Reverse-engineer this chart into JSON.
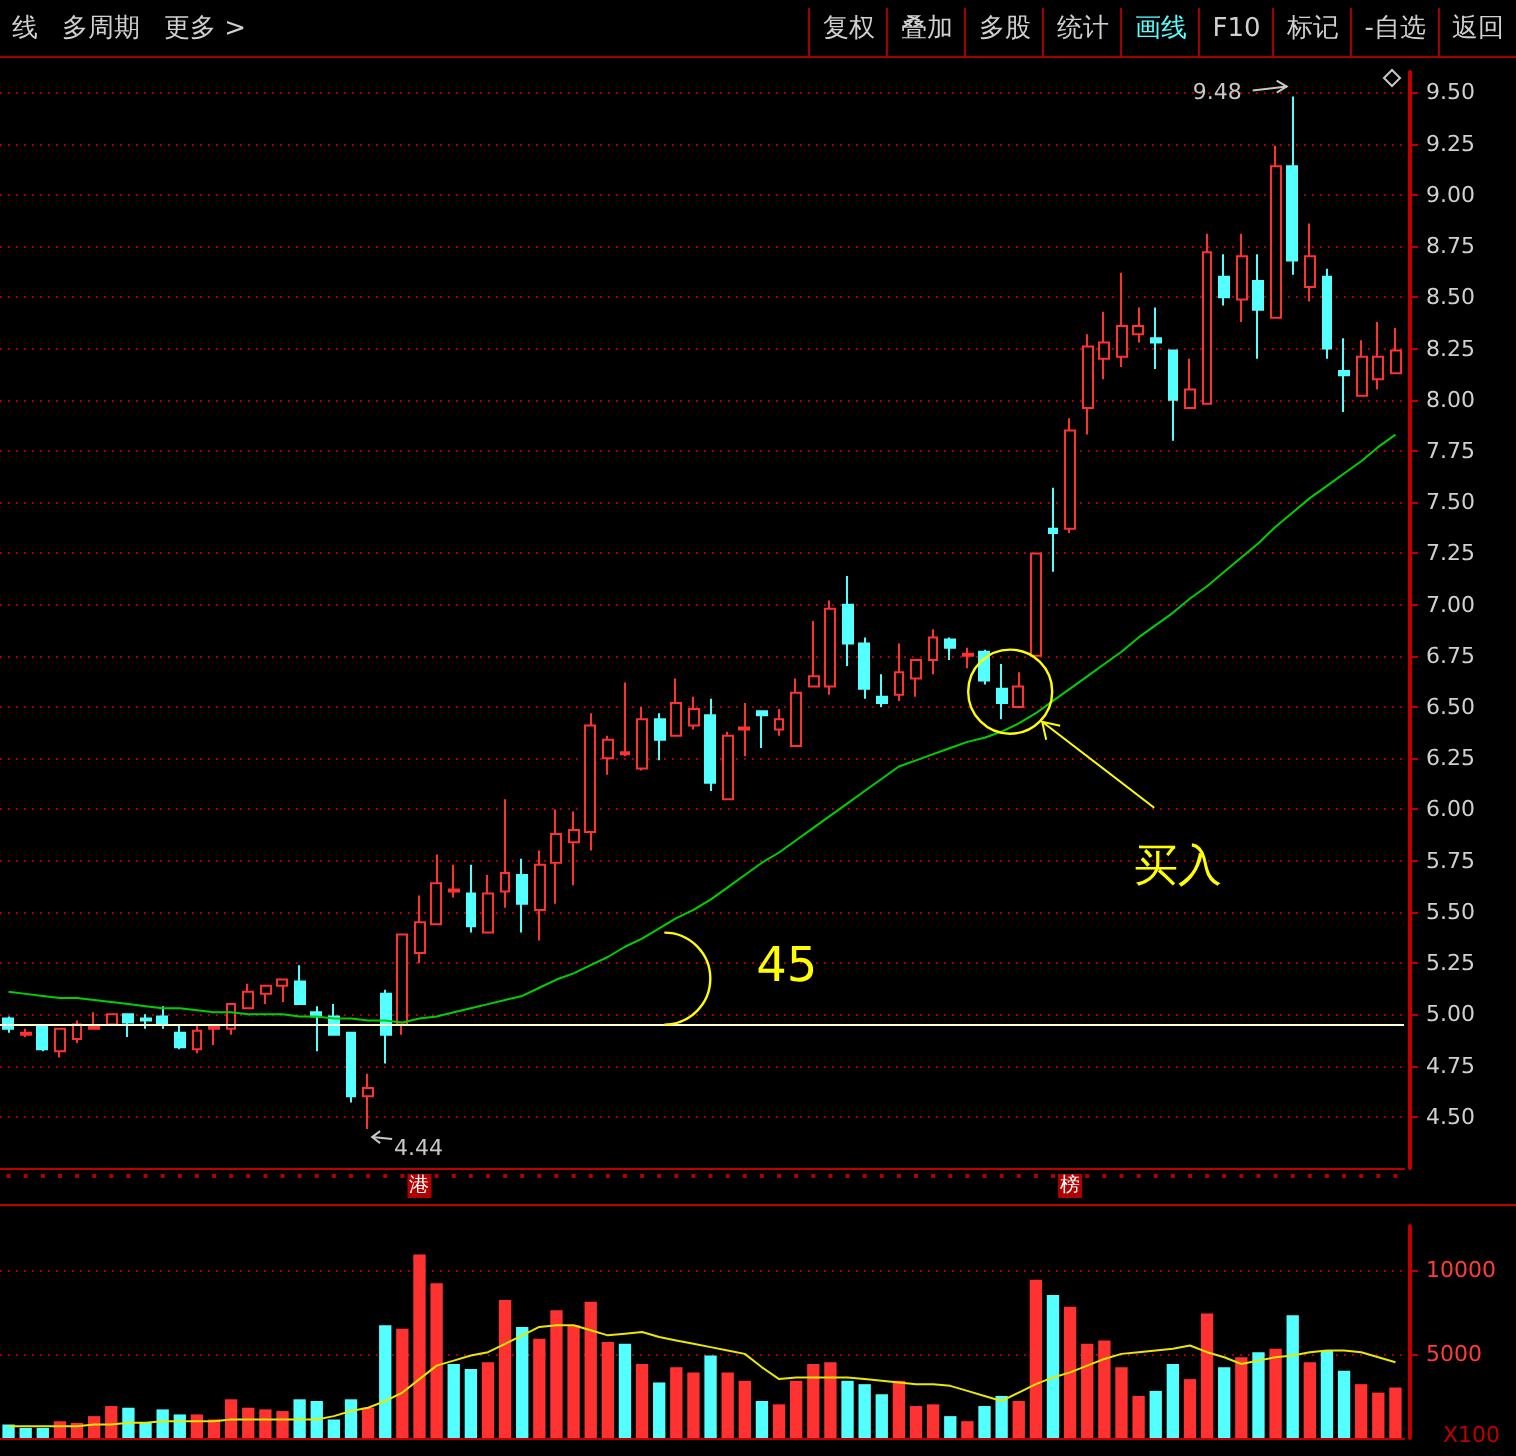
{
  "chart_data": [
    {
      "type": "candlestick",
      "categories": [
        null,
        null,
        null,
        null,
        null,
        null,
        null,
        null,
        null,
        null,
        null,
        null,
        null,
        null,
        null,
        null,
        null,
        null,
        null,
        null,
        null,
        null,
        null,
        null,
        "港",
        null,
        null,
        null,
        null,
        null,
        null,
        null,
        null,
        null,
        null,
        null,
        null,
        null,
        null,
        null,
        null,
        null,
        null,
        null,
        null,
        null,
        null,
        null,
        null,
        null,
        null,
        null,
        null,
        null,
        null,
        null,
        null,
        null,
        null,
        null,
        null,
        null,
        "榜",
        null,
        null,
        null,
        null,
        null,
        null,
        null,
        null,
        null,
        null,
        null,
        null,
        null,
        null,
        null,
        null,
        null,
        null,
        null
      ],
      "ohlc": [
        [
          4.98,
          4.99,
          4.91,
          4.93
        ],
        [
          4.9,
          4.93,
          4.89,
          4.91
        ],
        [
          4.94,
          4.94,
          4.82,
          4.83
        ],
        [
          4.82,
          4.93,
          4.79,
          4.93
        ],
        [
          4.88,
          4.97,
          4.86,
          4.95
        ],
        [
          4.93,
          5.01,
          4.93,
          4.94
        ],
        [
          4.95,
          5.0,
          4.95,
          5.0
        ],
        [
          5.0,
          5.0,
          4.89,
          4.96
        ],
        [
          4.98,
          5.0,
          4.93,
          4.97
        ],
        [
          4.99,
          5.04,
          4.93,
          4.95
        ],
        [
          4.91,
          4.95,
          4.83,
          4.84
        ],
        [
          4.83,
          4.95,
          4.81,
          4.92
        ],
        [
          4.93,
          4.95,
          4.85,
          4.94
        ],
        [
          4.93,
          5.05,
          4.9,
          5.05
        ],
        [
          5.03,
          5.15,
          5.03,
          5.11
        ],
        [
          5.1,
          5.14,
          5.05,
          5.14
        ],
        [
          5.14,
          5.17,
          5.06,
          5.17
        ],
        [
          5.16,
          5.24,
          5.05,
          5.05
        ],
        [
          5.01,
          5.04,
          4.82,
          4.99
        ],
        [
          4.99,
          5.05,
          4.9,
          4.9
        ],
        [
          4.91,
          4.91,
          4.57,
          4.6
        ],
        [
          4.6,
          4.71,
          4.44,
          4.64
        ],
        [
          5.1,
          5.12,
          4.76,
          4.9
        ],
        [
          4.95,
          5.39,
          4.9,
          5.39
        ],
        [
          5.3,
          5.58,
          5.25,
          5.45
        ],
        [
          5.44,
          5.78,
          5.44,
          5.64
        ],
        [
          5.6,
          5.73,
          5.57,
          5.61
        ],
        [
          5.59,
          5.73,
          5.4,
          5.43
        ],
        [
          5.4,
          5.68,
          5.4,
          5.59
        ],
        [
          5.6,
          6.05,
          5.52,
          5.69
        ],
        [
          5.68,
          5.76,
          5.4,
          5.54
        ],
        [
          5.51,
          5.8,
          5.36,
          5.73
        ],
        [
          5.74,
          6.0,
          5.54,
          5.88
        ],
        [
          5.84,
          5.99,
          5.63,
          5.9
        ],
        [
          5.89,
          6.47,
          5.8,
          6.41
        ],
        [
          6.25,
          6.36,
          6.17,
          6.34
        ],
        [
          6.27,
          6.62,
          6.26,
          6.28
        ],
        [
          6.2,
          6.5,
          6.19,
          6.44
        ],
        [
          6.44,
          6.47,
          6.24,
          6.34
        ],
        [
          6.36,
          6.64,
          6.36,
          6.52
        ],
        [
          6.41,
          6.55,
          6.39,
          6.49
        ],
        [
          6.46,
          6.54,
          6.09,
          6.13
        ],
        [
          6.05,
          6.38,
          6.05,
          6.36
        ],
        [
          6.39,
          6.52,
          6.26,
          6.4
        ],
        [
          6.48,
          6.48,
          6.3,
          6.46
        ],
        [
          6.39,
          6.49,
          6.36,
          6.44
        ],
        [
          6.31,
          6.64,
          6.31,
          6.57
        ],
        [
          6.6,
          6.92,
          6.6,
          6.65
        ],
        [
          6.6,
          7.02,
          6.56,
          6.98
        ],
        [
          7.0,
          7.14,
          6.7,
          6.81
        ],
        [
          6.81,
          6.84,
          6.54,
          6.59
        ],
        [
          6.55,
          6.66,
          6.5,
          6.52
        ],
        [
          6.56,
          6.81,
          6.53,
          6.67
        ],
        [
          6.64,
          6.73,
          6.55,
          6.73
        ],
        [
          6.73,
          6.88,
          6.66,
          6.84
        ],
        [
          6.83,
          6.84,
          6.73,
          6.79
        ],
        [
          6.75,
          6.79,
          6.69,
          6.76
        ],
        [
          6.77,
          6.78,
          6.61,
          6.63
        ],
        [
          6.59,
          6.71,
          6.44,
          6.52
        ],
        [
          6.5,
          6.67,
          6.5,
          6.6
        ],
        [
          6.75,
          7.25,
          6.75,
          7.25
        ],
        [
          7.37,
          7.57,
          7.16,
          7.35
        ],
        [
          7.37,
          7.91,
          7.35,
          7.85
        ],
        [
          7.96,
          8.32,
          7.83,
          8.26
        ],
        [
          8.2,
          8.43,
          8.1,
          8.28
        ],
        [
          8.21,
          8.62,
          8.16,
          8.36
        ],
        [
          8.32,
          8.45,
          8.28,
          8.36
        ],
        [
          8.3,
          8.45,
          8.15,
          8.28
        ],
        [
          8.24,
          8.24,
          7.8,
          8.0
        ],
        [
          7.96,
          8.2,
          7.96,
          8.05
        ],
        [
          7.98,
          8.81,
          7.98,
          8.72
        ],
        [
          8.6,
          8.71,
          8.46,
          8.5
        ],
        [
          8.49,
          8.81,
          8.38,
          8.7
        ],
        [
          8.58,
          8.71,
          8.2,
          8.44
        ],
        [
          8.4,
          9.24,
          8.4,
          9.14
        ],
        [
          9.14,
          9.48,
          8.61,
          8.68
        ],
        [
          8.55,
          8.86,
          8.48,
          8.7
        ],
        [
          8.6,
          8.64,
          8.2,
          8.25
        ],
        [
          8.14,
          8.3,
          7.94,
          8.12
        ],
        [
          8.02,
          8.29,
          8.02,
          8.21
        ],
        [
          8.1,
          8.38,
          8.05,
          8.21
        ],
        [
          8.13,
          8.35,
          8.13,
          8.24
        ]
      ],
      "series": [
        {
          "type": "line",
          "color": "#00d000",
          "values": [
            5.11,
            5.1,
            5.09,
            5.08,
            5.08,
            5.07,
            5.06,
            5.05,
            5.04,
            5.03,
            5.03,
            5.02,
            5.01,
            5.01,
            5.0,
            5.0,
            5.0,
            4.99,
            4.99,
            4.98,
            4.98,
            4.97,
            4.97,
            4.96,
            4.98,
            4.99,
            5.01,
            5.03,
            5.05,
            5.07,
            5.09,
            5.13,
            5.17,
            5.2,
            5.24,
            5.28,
            5.33,
            5.37,
            5.42,
            5.47,
            5.51,
            5.56,
            5.62,
            5.68,
            5.74,
            5.79,
            5.85,
            5.91,
            5.97,
            6.03,
            6.09,
            6.15,
            6.21,
            6.24,
            6.27,
            6.3,
            6.33,
            6.35,
            6.38,
            6.42,
            6.47,
            6.53,
            6.59,
            6.65,
            6.71,
            6.77,
            6.84,
            6.9,
            6.96,
            7.03,
            7.09,
            7.16,
            7.23,
            7.3,
            7.38,
            7.45,
            7.52,
            7.58,
            7.64,
            7.7,
            7.77,
            7.83
          ]
        }
      ],
      "ylim": [
        4.25,
        9.6
      ],
      "yticks": [
        {
          "value": 4.5,
          "label": "4.50"
        },
        {
          "value": 4.75,
          "label": "4.75"
        },
        {
          "value": 5,
          "label": "5.00"
        },
        {
          "value": 5.25,
          "label": "5.25"
        },
        {
          "value": 5.5,
          "label": "5.50"
        },
        {
          "value": 5.75,
          "label": "5.75"
        },
        {
          "value": 6,
          "label": "6.00"
        },
        {
          "value": 6.25,
          "label": "6.25"
        },
        {
          "value": 6.5,
          "label": "6.50"
        },
        {
          "value": 6.75,
          "label": "6.75"
        },
        {
          "value": 7,
          "label": "7.00"
        },
        {
          "value": 7.25,
          "label": "7.25"
        },
        {
          "value": 7.5,
          "label": "7.50"
        },
        {
          "value": 7.75,
          "label": "7.75"
        },
        {
          "value": 8,
          "label": "8.00"
        },
        {
          "value": 8.25,
          "label": "8.25"
        },
        {
          "value": 8.5,
          "label": "8.50"
        },
        {
          "value": 8.75,
          "label": "8.75"
        },
        {
          "value": 9,
          "label": "9.00"
        },
        {
          "value": 9.25,
          "label": "9.25"
        },
        {
          "value": 9.5,
          "label": "9.50"
        }
      ],
      "grid": "y",
      "marker": "none",
      "ref_lines": [
        {
          "axis": "y",
          "value": 4.95,
          "color": "#ffffd0"
        }
      ],
      "annotations": [
        "线",
        "多周期",
        "更多 >",
        "复权",
        "叠加",
        "多股",
        "统计",
        "画线",
        "F10",
        "标记",
        "-自选",
        "返回",
        "45",
        "买入",
        "9.48",
        "4.44"
      ]
    },
    {
      "type": "bar",
      "categories": [
        null,
        null,
        null,
        null,
        null,
        null,
        null,
        null,
        null,
        null,
        null,
        null,
        null,
        null,
        null,
        null,
        null,
        null,
        null,
        null,
        null,
        null,
        null,
        null,
        null,
        null,
        null,
        null,
        null,
        null,
        null,
        null,
        null,
        null,
        null,
        null,
        null,
        null,
        null,
        null,
        null,
        null,
        null,
        null,
        null,
        null,
        null,
        null,
        null,
        null,
        null,
        null,
        null,
        null,
        null,
        null,
        null,
        null,
        null,
        null,
        null,
        null,
        null,
        null,
        null,
        null,
        null,
        null,
        null,
        null,
        null,
        null,
        null,
        null,
        null,
        null,
        null,
        null,
        null,
        null,
        null,
        null
      ],
      "series": [
        {
          "type": "bar",
          "values": [
            800,
            600,
            600,
            1000,
            900,
            1300,
            1900,
            1800,
            900,
            1700,
            1400,
            1400,
            1100,
            2300,
            1800,
            1700,
            1600,
            2300,
            2200,
            1100,
            2300,
            1800,
            6700,
            6500,
            10900,
            9200,
            4400,
            4100,
            4500,
            8200,
            6600,
            5900,
            7600,
            6700,
            8100,
            5700,
            5600,
            4400,
            3300,
            4200,
            3900,
            4900,
            3900,
            3400,
            2200,
            2000,
            3400,
            4400,
            4500,
            3400,
            3200,
            2600,
            3400,
            1900,
            2000,
            1300,
            1000,
            1900,
            2500,
            2200,
            9400,
            8500,
            7800,
            5600,
            5800,
            4200,
            2500,
            2800,
            4400,
            3500,
            7400,
            4200,
            4800,
            5100,
            5300,
            7300,
            4500,
            5200,
            4000,
            3200,
            2700,
            3000
          ],
          "colors": [
            "#54ffff",
            "#54ffff",
            "#54ffff",
            "#ff3232",
            "#ff3232",
            "#ff3232",
            "#ff3232",
            "#54ffff",
            "#54ffff",
            "#54ffff",
            "#54ffff",
            "#ff3232",
            "#ff3232",
            "#ff3232",
            "#ff3232",
            "#ff3232",
            "#ff3232",
            "#54ffff",
            "#54ffff",
            "#54ffff",
            "#54ffff",
            "#ff3232",
            "#54ffff",
            "#ff3232",
            "#ff3232",
            "#ff3232",
            "#54ffff",
            "#54ffff",
            "#ff3232",
            "#ff3232",
            "#54ffff",
            "#ff3232",
            "#ff3232",
            "#ff3232",
            "#ff3232",
            "#ff3232",
            "#54ffff",
            "#ff3232",
            "#54ffff",
            "#ff3232",
            "#ff3232",
            "#54ffff",
            "#ff3232",
            "#ff3232",
            "#54ffff",
            "#ff3232",
            "#ff3232",
            "#ff3232",
            "#ff3232",
            "#54ffff",
            "#54ffff",
            "#54ffff",
            "#ff3232",
            "#ff3232",
            "#ff3232",
            "#54ffff",
            "#ff3232",
            "#54ffff",
            "#54ffff",
            "#ff3232",
            "#ff3232",
            "#54ffff",
            "#ff3232",
            "#ff3232",
            "#ff3232",
            "#ff3232",
            "#ff3232",
            "#54ffff",
            "#54ffff",
            "#ff3232",
            "#ff3232",
            "#54ffff",
            "#ff3232",
            "#54ffff",
            "#ff3232",
            "#54ffff",
            "#ff3232",
            "#54ffff",
            "#54ffff",
            "#ff3232",
            "#ff3232",
            "#ff3232"
          ]
        },
        {
          "type": "line",
          "color": "#e8e800",
          "values": [
            700,
            700,
            700,
            700,
            700,
            800,
            800,
            900,
            900,
            1000,
            1000,
            1000,
            1000,
            1100,
            1100,
            1100,
            1100,
            1100,
            1100,
            1300,
            1600,
            1800,
            2200,
            2700,
            3500,
            4300,
            4600,
            4900,
            5100,
            5600,
            6100,
            6600,
            6700,
            6700,
            6400,
            6100,
            6200,
            6300,
            6000,
            5800,
            5600,
            5400,
            5200,
            5000,
            4200,
            3500,
            3600,
            3600,
            3600,
            3600,
            3500,
            3400,
            3300,
            3200,
            3200,
            3100,
            2800,
            2500,
            2200,
            2700,
            3200,
            3600,
            3900,
            4300,
            4700,
            5000,
            5100,
            5200,
            5300,
            5500,
            5100,
            4800,
            4400,
            4600,
            4800,
            4900,
            5100,
            5200,
            5200,
            5100,
            4800,
            4500
          ]
        }
      ],
      "ylim": [
        0,
        12600
      ],
      "yticks": [
        5000,
        10000
      ],
      "grid": "y",
      "marker": "none",
      "annotations": [
        "X100"
      ]
    }
  ]
}
